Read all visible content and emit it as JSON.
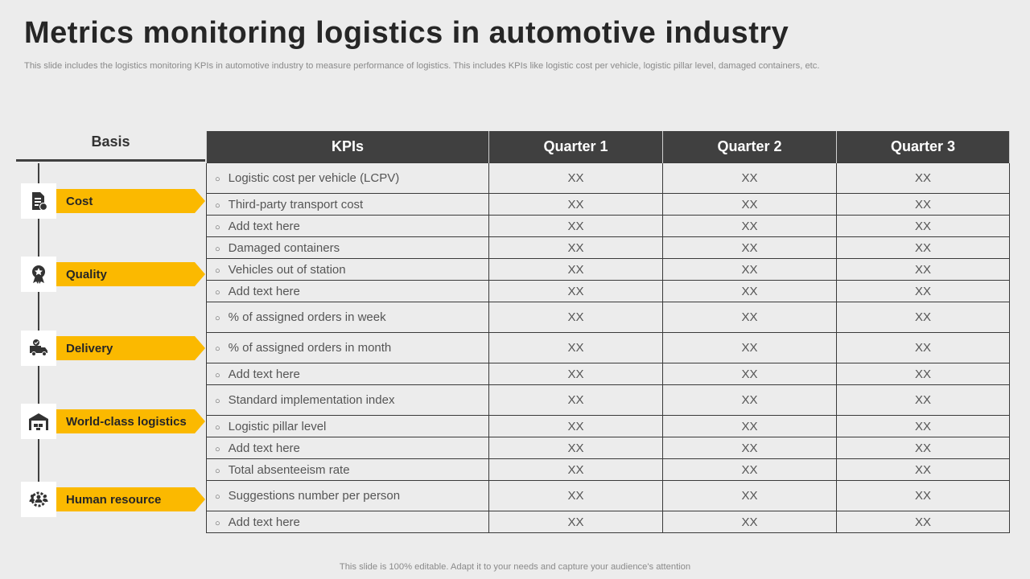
{
  "title": "Metrics monitoring logistics in automotive industry",
  "subtitle": "This slide includes the logistics monitoring KPIs in automotive industry to measure performance of logistics. This includes KPIs like logistic cost per vehicle, logistic pillar level, damaged containers, etc.",
  "footer": "This slide is 100% editable. Adapt it to your needs and capture your audience's attention",
  "basis_header": "Basis",
  "accent_color": "#fbb900",
  "header_color": "#404040",
  "categories": [
    {
      "label": "Cost",
      "icon": "document-cost-icon"
    },
    {
      "label": "Quality",
      "icon": "award-badge-icon"
    },
    {
      "label": "Delivery",
      "icon": "delivery-truck-icon"
    },
    {
      "label": "World-class logistics",
      "icon": "warehouse-icon"
    },
    {
      "label": "Human resource",
      "icon": "people-gear-icon"
    }
  ],
  "table": {
    "headers": [
      "KPIs",
      "Quarter 1",
      "Quarter 2",
      "Quarter 3"
    ],
    "rows": [
      {
        "kpi": "Logistic cost per vehicle (LCPV)",
        "q1": "XX",
        "q2": "XX",
        "q3": "XX"
      },
      {
        "kpi": "Third-party transport cost",
        "q1": "XX",
        "q2": "XX",
        "q3": "XX"
      },
      {
        "kpi": "Add text here",
        "q1": "XX",
        "q2": "XX",
        "q3": "XX"
      },
      {
        "kpi": "Damaged containers",
        "q1": "XX",
        "q2": "XX",
        "q3": "XX"
      },
      {
        "kpi": "Vehicles out of station",
        "q1": "XX",
        "q2": "XX",
        "q3": "XX"
      },
      {
        "kpi": "Add text here",
        "q1": "XX",
        "q2": "XX",
        "q3": "XX"
      },
      {
        "kpi": "% of assigned orders in week",
        "q1": "XX",
        "q2": "XX",
        "q3": "XX"
      },
      {
        "kpi": "% of assigned orders in month",
        "q1": "XX",
        "q2": "XX",
        "q3": "XX"
      },
      {
        "kpi": "Add text here",
        "q1": "XX",
        "q2": "XX",
        "q3": "XX"
      },
      {
        "kpi": "Standard implementation index",
        "q1": "XX",
        "q2": "XX",
        "q3": "XX"
      },
      {
        "kpi": "Logistic pillar level",
        "q1": "XX",
        "q2": "XX",
        "q3": "XX"
      },
      {
        "kpi": "Add text here",
        "q1": "XX",
        "q2": "XX",
        "q3": "XX"
      },
      {
        "kpi": "Total absenteeism rate",
        "q1": "XX",
        "q2": "XX",
        "q3": "XX"
      },
      {
        "kpi": "Suggestions number per person",
        "q1": "XX",
        "q2": "XX",
        "q3": "XX"
      },
      {
        "kpi": "Add text here",
        "q1": "XX",
        "q2": "XX",
        "q3": "XX"
      }
    ]
  }
}
